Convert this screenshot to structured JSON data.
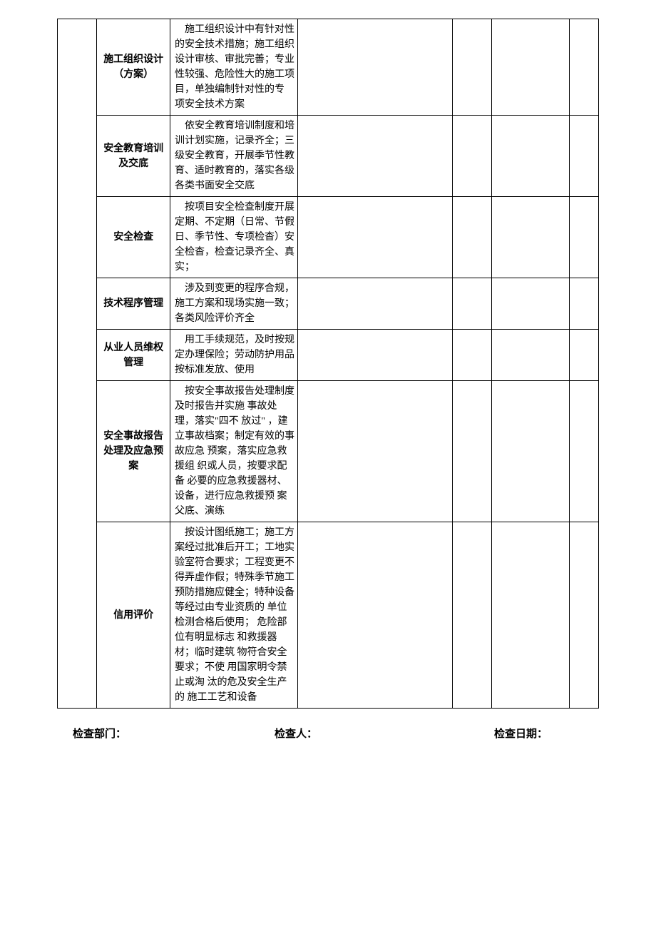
{
  "table": {
    "rows": [
      {
        "label": "施工组织设计（方案）",
        "desc": "　施工组织设计中有针对性的安全技术措施；施工组织设计审核、审批完善；专业性较强、危险性大的施工项目，单独编制针对性的专 项安全技术方案"
      },
      {
        "label": "安全教育培训及交底",
        "desc": "　依安全教育培训制度和培训计划实施，记录齐全；三级安全教育，开展季节性教育、适时教育的，落实各级各类书面安全交底"
      },
      {
        "label": "安全检查",
        "desc": "　按项目安全检查制度开展定期、不定期（日常、节假日、季节性、专项检杳）安全检杳，检查记录齐全、真实；"
      },
      {
        "label": "技术程序管理",
        "desc": "　涉及到变更的程序合规， 施工方案和现场实施一致；各类风险评价齐全"
      },
      {
        "label": "从业人员维权管理",
        "desc": "　用工手续规范，及时按规定办理保险；劳动防护用品按标准发放、使用"
      },
      {
        "label": "安全事故报告处理及应急预案",
        "desc": "　按安全事故报告处理制度及时报告并实施 事故处理，落实\"四不 放过\" ，建立事故档案；制定有效的事故应急 预案，落实应急救援组 织或人员，按要求配备 必要的应急救援器材、 设备，进行应急救援预 案父底、演练"
      },
      {
        "label": "信用评价",
        "desc": "　按设计图纸施工；施工方案经过批准后开工；工地实验室符合要求；工程变更不得弄虚作假；特殊季节施工预防措施应健全；特种设备等经过由专业资质的 单位检测合格后使用； 危险部位有明显标志 和救援器材；临时建筑 物符合安全要求；不使 用国家明令禁止或淘 汰的危及安全生产的 施工工艺和设备"
      }
    ]
  },
  "footer": {
    "dept_label": "检查部门：",
    "inspector_label": "检查人：",
    "date_label": "检查日期："
  }
}
